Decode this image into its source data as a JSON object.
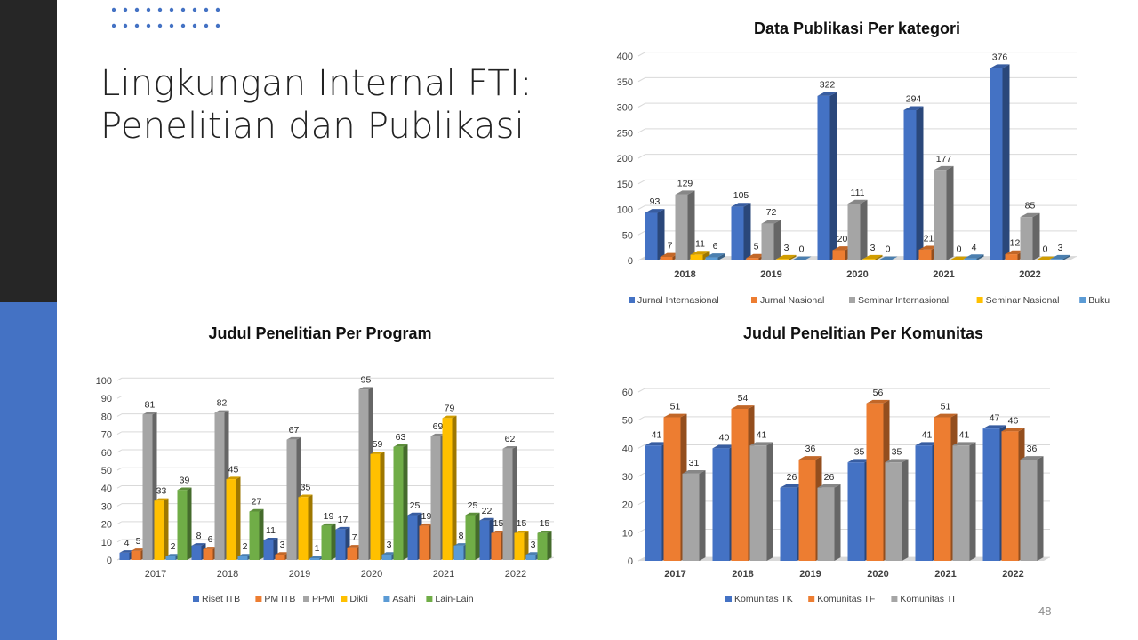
{
  "slide": {
    "title_line1": "Lingkungan Internal FTI:",
    "title_line2": "Penelitian dan Publikasi",
    "page_number": "48"
  },
  "chart_data": [
    {
      "id": "publikasi",
      "type": "bar",
      "title": "Data Publikasi Per kategori",
      "categories": [
        "2018",
        "2019",
        "2020",
        "2021",
        "2022"
      ],
      "ylim": [
        0,
        400
      ],
      "yticks": [
        0,
        50,
        100,
        150,
        200,
        250,
        300,
        350,
        400
      ],
      "grid": true,
      "legend": "bottom",
      "series": [
        {
          "name": "Jurnal Internasional",
          "color": "#4472c4",
          "values": [
            93,
            105,
            322,
            294,
            376
          ]
        },
        {
          "name": "Jurnal Nasional",
          "color": "#ed7d31",
          "values": [
            7,
            5,
            20,
            21,
            12
          ]
        },
        {
          "name": "Seminar Internasional",
          "color": "#a5a5a5",
          "values": [
            129,
            72,
            111,
            177,
            85
          ]
        },
        {
          "name": "Seminar Nasional",
          "color": "#ffc000",
          "values": [
            11,
            3,
            3,
            0,
            0
          ]
        },
        {
          "name": "Buku",
          "color": "#5b9bd5",
          "values": [
            6,
            0,
            0,
            4,
            3
          ]
        }
      ]
    },
    {
      "id": "program",
      "type": "bar",
      "title": "Judul Penelitian Per Program",
      "categories": [
        "2017",
        "2018",
        "2019",
        "2020",
        "2021",
        "2022"
      ],
      "ylim": [
        0,
        100
      ],
      "yticks": [
        0,
        10,
        20,
        30,
        40,
        50,
        60,
        70,
        80,
        90,
        100
      ],
      "grid": true,
      "legend": "bottom",
      "series": [
        {
          "name": "Riset ITB",
          "color": "#4472c4",
          "values": [
            4,
            8,
            11,
            17,
            25,
            22
          ]
        },
        {
          "name": "PM ITB",
          "color": "#ed7d31",
          "values": [
            5,
            6,
            3,
            7,
            19,
            15
          ]
        },
        {
          "name": "PPMI",
          "color": "#a5a5a5",
          "values": [
            81,
            82,
            67,
            95,
            69,
            62
          ]
        },
        {
          "name": "Dikti",
          "color": "#ffc000",
          "values": [
            33,
            45,
            35,
            59,
            79,
            15
          ]
        },
        {
          "name": "Asahi",
          "color": "#5b9bd5",
          "values": [
            2,
            2,
            1,
            3,
            8,
            3
          ]
        },
        {
          "name": "Lain-Lain",
          "color": "#70ad47",
          "values": [
            39,
            27,
            19,
            63,
            25,
            15
          ]
        }
      ]
    },
    {
      "id": "komunitas",
      "type": "bar",
      "title": "Judul Penelitian Per Komunitas",
      "categories": [
        "2017",
        "2018",
        "2019",
        "2020",
        "2021",
        "2022"
      ],
      "ylim": [
        0,
        60
      ],
      "yticks": [
        0,
        10,
        20,
        30,
        40,
        50,
        60
      ],
      "grid": true,
      "legend": "bottom",
      "series": [
        {
          "name": "Komunitas TK",
          "color": "#4472c4",
          "values": [
            41,
            40,
            26,
            35,
            41,
            47
          ]
        },
        {
          "name": "Komunitas TF",
          "color": "#ed7d31",
          "values": [
            51,
            54,
            36,
            56,
            51,
            46
          ]
        },
        {
          "name": "Komunitas TI",
          "color": "#a5a5a5",
          "values": [
            31,
            41,
            26,
            35,
            41,
            36
          ]
        }
      ]
    }
  ]
}
